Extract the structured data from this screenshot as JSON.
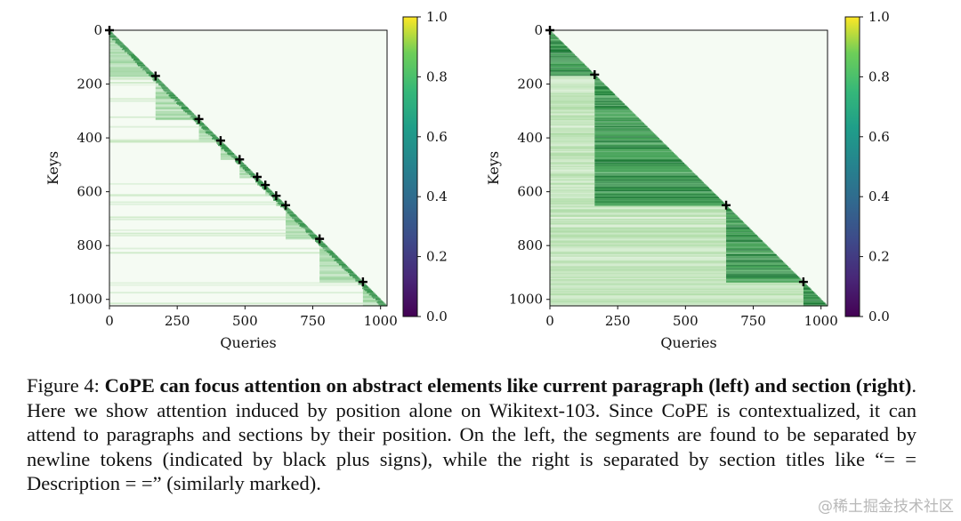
{
  "figure": {
    "caption": {
      "label": "Figure 4:",
      "title": "CoPE can focus attention on abstract elements like current paragraph (left) and section (right)",
      "body": ". Here we show attention induced by position alone on Wikitext-103. Since CoPE is contextualized, it can attend to paragraphs and sections by their position. On the left, the segments are found to be separated by newline tokens (indicated by black plus signs), while the right is separated by section titles like “= = Description = =” (similarly marked)."
    }
  },
  "watermark": "@稀土掘金技术社区",
  "chart_data": [
    {
      "type": "heatmap",
      "panel": "left",
      "xlabel": "Queries",
      "ylabel": "Keys",
      "xlim": [
        0,
        1024
      ],
      "ylim": [
        1024,
        0
      ],
      "xticks": [
        0,
        250,
        500,
        750,
        1000
      ],
      "yticks": [
        0,
        200,
        400,
        600,
        800,
        1000
      ],
      "colormap": "Greens (attention), viridis colorbar",
      "colorbar": {
        "min": 0.0,
        "max": 1.0,
        "ticks": [
          "0.0",
          "0.2",
          "0.4",
          "0.6",
          "0.8",
          "1.0"
        ]
      },
      "masking": "lower-triangular (causal)",
      "pattern": "attention concentrated near diagonal within current paragraph",
      "boundary_markers": [
        0,
        170,
        330,
        410,
        480,
        545,
        575,
        615,
        650,
        775,
        935
      ],
      "marker_style": "black plus"
    },
    {
      "type": "heatmap",
      "panel": "right",
      "xlabel": "Queries",
      "ylabel": "Keys",
      "xlim": [
        0,
        1024
      ],
      "ylim": [
        1024,
        0
      ],
      "xticks": [
        0,
        250,
        500,
        750,
        1000
      ],
      "yticks": [
        0,
        200,
        400,
        600,
        800,
        1000
      ],
      "colormap": "Greens (attention), viridis colorbar",
      "colorbar": {
        "min": 0.0,
        "max": 1.0,
        "ticks": [
          "0.0",
          "0.2",
          "0.4",
          "0.6",
          "0.8",
          "1.0"
        ]
      },
      "masking": "lower-triangular (causal)",
      "pattern": "attention spans whole current section",
      "boundary_markers": [
        0,
        165,
        650,
        935
      ],
      "marker_style": "black plus"
    }
  ]
}
